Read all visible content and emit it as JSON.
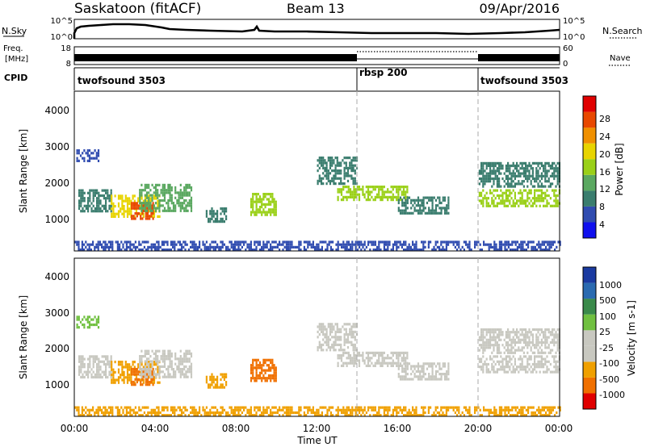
{
  "header": {
    "station": "Saskatoon (fitACF)",
    "beam": "Beam 13",
    "date": "09/Apr/2016"
  },
  "noise_panel": {
    "left_label": "N.Sky",
    "right_label": "N.Search",
    "y_ticks": [
      "10^5",
      "10^0"
    ],
    "right_ticks": [
      "10^5",
      "10^0"
    ]
  },
  "freq_panel": {
    "left_label_1": "Freq.",
    "left_label_2": "[MHz]",
    "right_label": "Nave",
    "left_ticks": [
      "18",
      "8"
    ],
    "right_ticks": [
      "60",
      "0"
    ]
  },
  "cpid": {
    "label": "CPID",
    "segments": [
      {
        "name": "twofsound 3503",
        "start_hour": 0,
        "end_hour": 14
      },
      {
        "name": "rbsp 200",
        "start_hour": 14,
        "end_hour": 20
      },
      {
        "name": "twofsound 3503",
        "start_hour": 20,
        "end_hour": 24
      }
    ]
  },
  "colors": {
    "power": [
      "#1010ee",
      "#304cb0",
      "#3a7d6e",
      "#5aa860",
      "#9ad018",
      "#e8d400",
      "#f09000",
      "#e84800",
      "#e00000"
    ],
    "velocity": [
      "#e00000",
      "#f07000",
      "#f0a000",
      "#c8c8c0",
      "#c8c8c0",
      "#70c040",
      "#3a8a4a",
      "#2a6ab0",
      "#1a3aa0"
    ]
  },
  "chart_data": [
    {
      "type": "heatmap",
      "title": "Power",
      "ylabel": "Slant Range [km]",
      "xlim": [
        0,
        24
      ],
      "ylim": [
        200,
        4600
      ],
      "y_ticks": [
        "4000",
        "3000",
        "2000",
        "1000"
      ],
      "colorbar": {
        "label": "Power [dB]",
        "ticks": [
          "28",
          "24",
          "20",
          "16",
          "12",
          "8",
          "4"
        ],
        "range": [
          0,
          30
        ]
      },
      "regions": [
        {
          "x": [
            0.1,
            1.2
          ],
          "y": [
            2650,
            3000
          ],
          "value": 6
        },
        {
          "x": [
            0.2,
            1.8
          ],
          "y": [
            1300,
            1900
          ],
          "value": 8
        },
        {
          "x": [
            1.8,
            4.2
          ],
          "y": [
            1150,
            1750
          ],
          "value": 18
        },
        {
          "x": [
            2.8,
            3.9
          ],
          "y": [
            1100,
            1550
          ],
          "value": 26
        },
        {
          "x": [
            3.2,
            5.8
          ],
          "y": [
            1300,
            2050
          ],
          "value": 12
        },
        {
          "x": [
            6.5,
            7.5
          ],
          "y": [
            1000,
            1400
          ],
          "value": 8
        },
        {
          "x": [
            8.7,
            10.0
          ],
          "y": [
            1200,
            1800
          ],
          "value": 14
        },
        {
          "x": [
            12.0,
            14.0
          ],
          "y": [
            2050,
            2800
          ],
          "value": 8
        },
        {
          "x": [
            13.0,
            16.5
          ],
          "y": [
            1600,
            2000
          ],
          "value": 16
        },
        {
          "x": [
            16.0,
            18.5
          ],
          "y": [
            1250,
            1700
          ],
          "value": 8
        },
        {
          "x": [
            20.0,
            24.0
          ],
          "y": [
            1950,
            2650
          ],
          "value": 8
        },
        {
          "x": [
            20.0,
            24.0
          ],
          "y": [
            1450,
            1900
          ],
          "value": 16
        },
        {
          "x": [
            0.0,
            24.0
          ],
          "y": [
            260,
            480
          ],
          "value": 6
        }
      ]
    },
    {
      "type": "heatmap",
      "title": "Velocity",
      "ylabel": "Slant Range [km]",
      "xlabel": "Time UT",
      "xlim": [
        0,
        24
      ],
      "ylim": [
        200,
        4600
      ],
      "x_ticks": [
        "00:00",
        "04:00",
        "08:00",
        "12:00",
        "16:00",
        "20:00",
        "00:00"
      ],
      "y_ticks": [
        "4000",
        "3000",
        "2000",
        "1000"
      ],
      "colorbar": {
        "label": "Velocity [m s-1]",
        "ticks": [
          "1000",
          "500",
          "100",
          "25",
          "-25",
          "-100",
          "-500",
          "-1000"
        ]
      },
      "regions": [
        {
          "x": [
            0.1,
            1.2
          ],
          "y": [
            2650,
            3000
          ],
          "value": 100
        },
        {
          "x": [
            0.2,
            1.8
          ],
          "y": [
            1300,
            1900
          ],
          "value": 0
        },
        {
          "x": [
            1.8,
            4.2
          ],
          "y": [
            1150,
            1750
          ],
          "value": -200
        },
        {
          "x": [
            2.8,
            3.9
          ],
          "y": [
            1100,
            1550
          ],
          "value": -300
        },
        {
          "x": [
            3.2,
            5.8
          ],
          "y": [
            1300,
            2050
          ],
          "value": 0
        },
        {
          "x": [
            6.5,
            7.5
          ],
          "y": [
            1000,
            1400
          ],
          "value": -200
        },
        {
          "x": [
            8.7,
            10.0
          ],
          "y": [
            1200,
            1800
          ],
          "value": -300
        },
        {
          "x": [
            12.0,
            14.0
          ],
          "y": [
            2050,
            2800
          ],
          "value": 0
        },
        {
          "x": [
            13.0,
            16.5
          ],
          "y": [
            1600,
            2000
          ],
          "value": 0
        },
        {
          "x": [
            16.0,
            18.5
          ],
          "y": [
            1250,
            1700
          ],
          "value": 0
        },
        {
          "x": [
            20.0,
            24.0
          ],
          "y": [
            1950,
            2650
          ],
          "value": 0
        },
        {
          "x": [
            20.0,
            24.0
          ],
          "y": [
            1450,
            1900
          ],
          "value": 0
        },
        {
          "x": [
            0.0,
            24.0
          ],
          "y": [
            260,
            480
          ],
          "value": -100
        }
      ]
    }
  ]
}
